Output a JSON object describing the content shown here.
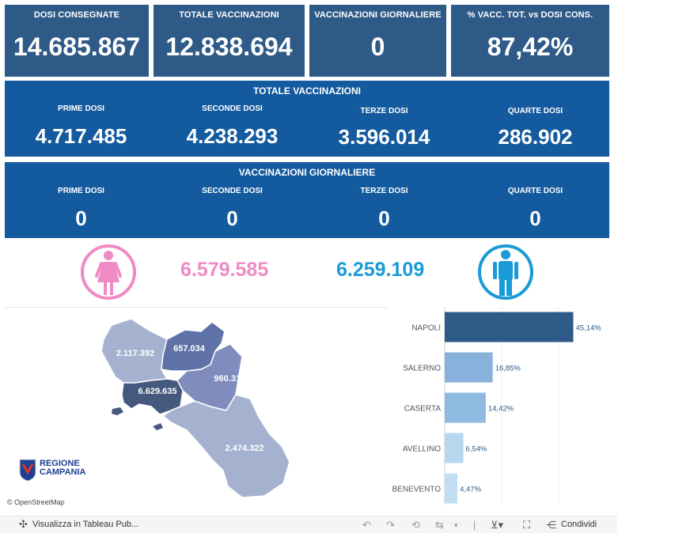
{
  "kpis": [
    {
      "label": "DOSI  CONSEGNATE",
      "value": "14.685.867"
    },
    {
      "label": "TOTALE VACCINAZIONI",
      "value": "12.838.694"
    },
    {
      "label": "VACCINAZIONI GIORNALIERE",
      "value": "0"
    },
    {
      "label": "% VACC. TOT. vs DOSI CONS.",
      "value": "87,42%"
    }
  ],
  "totale": {
    "title": "TOTALE VACCINAZIONI",
    "cols": [
      {
        "label": "PRIME DOSI",
        "value": "4.717.485"
      },
      {
        "label": "SECONDE DOSI",
        "value": "4.238.293"
      },
      {
        "label": "TERZE DOSI",
        "value": "3.596.014"
      },
      {
        "label": "QUARTE DOSI",
        "value": "286.902"
      }
    ]
  },
  "giornaliere": {
    "title": "VACCINAZIONI GIORNALIERE",
    "cols": [
      {
        "label": "PRIME DOSI",
        "value": "0"
      },
      {
        "label": "SECONDE DOSI",
        "value": "0"
      },
      {
        "label": "TERZE DOSI",
        "value": "0"
      },
      {
        "label": "QUARTE DOSI",
        "value": "0"
      }
    ]
  },
  "gender": {
    "female_value": "6.579.585",
    "male_value": "6.259.109",
    "female_color": "#f08ac4",
    "male_color": "#1a9ad6",
    "female_icon": "female-icon",
    "male_icon": "male-icon"
  },
  "map": {
    "labels": {
      "caserta": "2.117.392",
      "benevento": "657.034",
      "avellino": "960.311",
      "napoli": "6.629.635",
      "salerno": "2.474.322"
    },
    "logo_line1": "REGIONE",
    "logo_line2": "CAMPANIA",
    "attribution": "© OpenStreetMap"
  },
  "chart_data": {
    "type": "bar",
    "orientation": "horizontal",
    "categories": [
      "NAPOLI",
      "SALERNO",
      "CASERTA",
      "AVELLINO",
      "BENEVENTO"
    ],
    "values": [
      45.14,
      16.85,
      14.42,
      6.54,
      4.47
    ],
    "value_labels": [
      "45,14%",
      "16,85%",
      "14,42%",
      "6,54%",
      "4,47%"
    ],
    "colors": [
      "#2e5a87",
      "#88b2dc",
      "#8fbbe2",
      "#b6d7ee",
      "#c2def2"
    ],
    "xlim": [
      0,
      50
    ],
    "grid": true
  },
  "toolbar": {
    "view_label": "Visualizza in Tableau Pub...",
    "share_label": "Condividi"
  }
}
